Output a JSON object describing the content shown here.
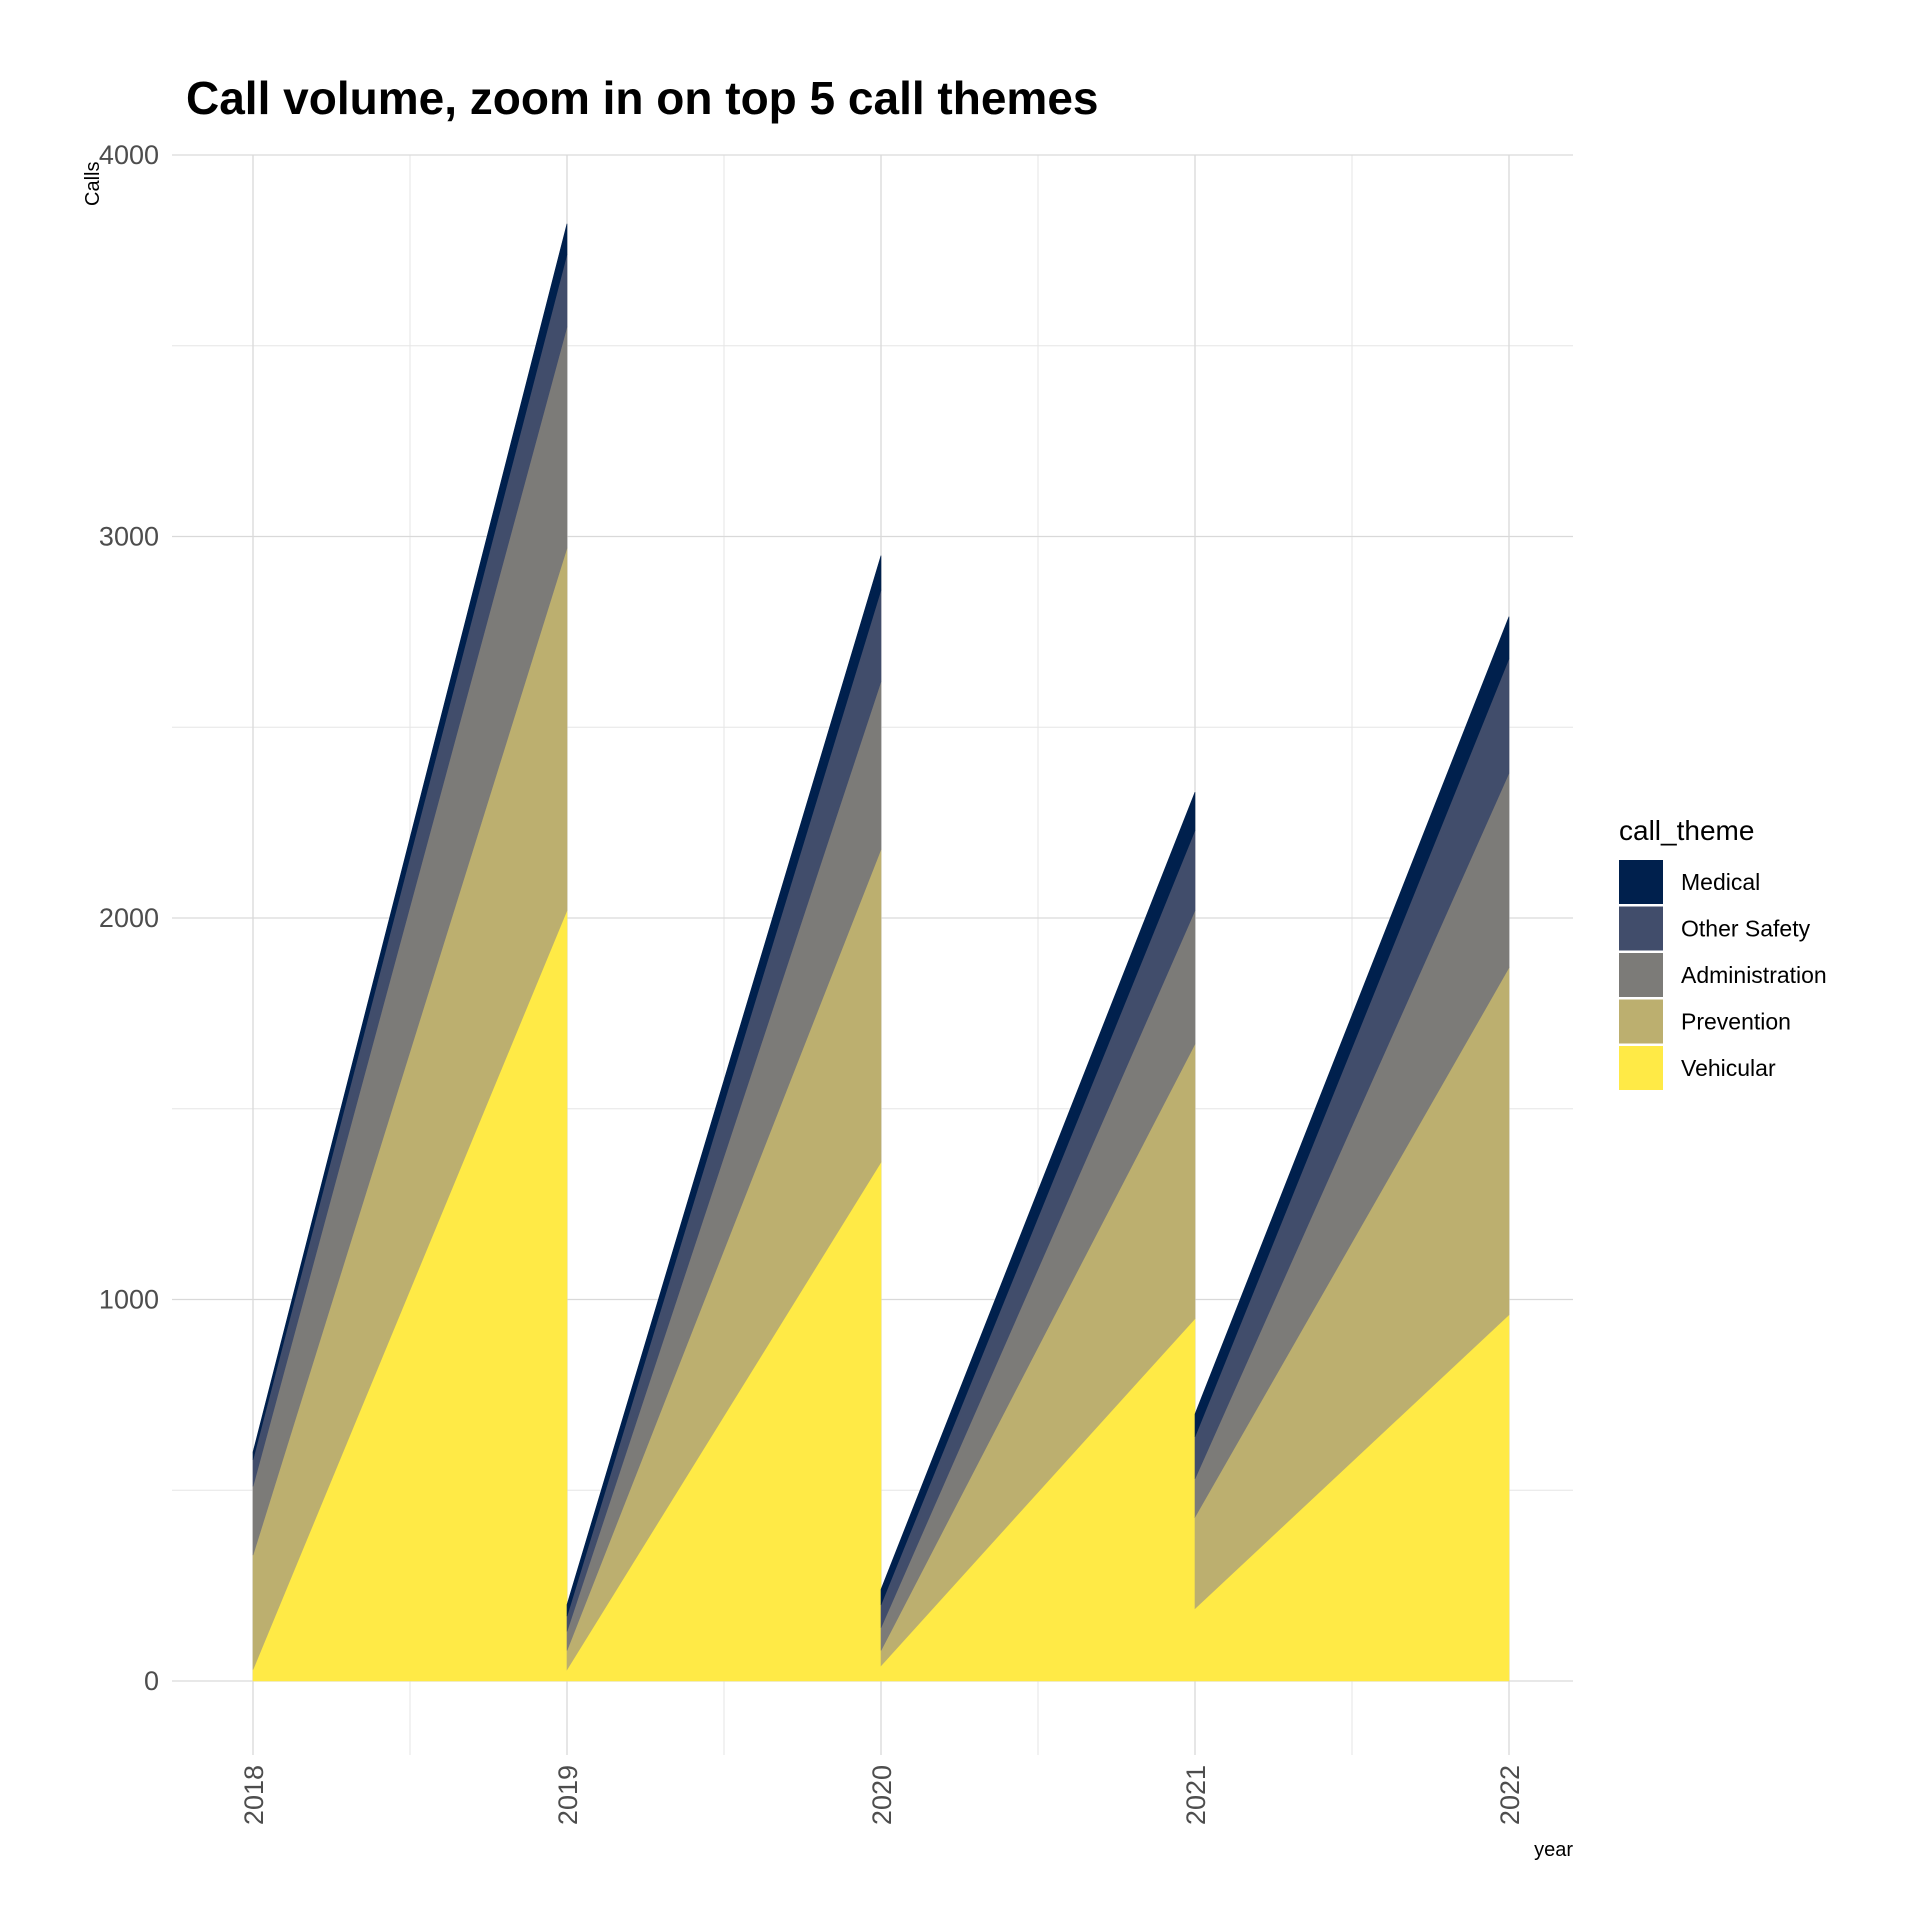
{
  "chart_data": {
    "type": "area",
    "title": "Call volume, zoom in on top 5 call themes",
    "xlabel": "year",
    "ylabel": "Calls",
    "ylim": [
      0,
      4000
    ],
    "xlim": [
      2018,
      2022
    ],
    "y_ticks": [
      "0",
      "1000",
      "2000",
      "3000",
      "4000"
    ],
    "x_ticks": [
      "2018",
      "2019",
      "2020",
      "2021",
      "2022"
    ],
    "grid": true,
    "stacked": true,
    "legend": {
      "title": "call_theme",
      "position": "right"
    },
    "series": [
      {
        "name": "Medical",
        "color": "#00204D"
      },
      {
        "name": "Other Safety",
        "color": "#414D6B"
      },
      {
        "name": "Administration",
        "color": "#7C7B78"
      },
      {
        "name": "Prevention",
        "color": "#BCAF6F"
      },
      {
        "name": "Vehicular",
        "color": "#FFEA46"
      }
    ],
    "segments": [
      {
        "x0": 2018,
        "x1": 2019,
        "y0": {
          "Vehicular": 30,
          "Prevention": 330,
          "Administration": 510,
          "Other Safety": 580,
          "Medical": 600
        },
        "y1": {
          "Vehicular": 2020,
          "Prevention": 2970,
          "Administration": 3550,
          "Other Safety": 3740,
          "Medical": 3820
        }
      },
      {
        "x0": 2019,
        "x1": 2020,
        "y0": {
          "Vehicular": 30,
          "Prevention": 80,
          "Administration": 130,
          "Other Safety": 170,
          "Medical": 200
        },
        "y1": {
          "Vehicular": 1360,
          "Prevention": 2180,
          "Administration": 2620,
          "Other Safety": 2860,
          "Medical": 2950
        }
      },
      {
        "x0": 2020,
        "x1": 2021,
        "y0": {
          "Vehicular": 40,
          "Prevention": 80,
          "Administration": 140,
          "Other Safety": 200,
          "Medical": 240
        },
        "y1": {
          "Vehicular": 950,
          "Prevention": 1670,
          "Administration": 2020,
          "Other Safety": 2230,
          "Medical": 2330
        }
      },
      {
        "x0": 2021,
        "x1": 2022,
        "y0": {
          "Vehicular": 190,
          "Prevention": 430,
          "Administration": 530,
          "Other Safety": 640,
          "Medical": 700
        },
        "y1": {
          "Vehicular": 960,
          "Prevention": 1870,
          "Administration": 2380,
          "Other Safety": 2680,
          "Medical": 2790
        }
      }
    ]
  }
}
